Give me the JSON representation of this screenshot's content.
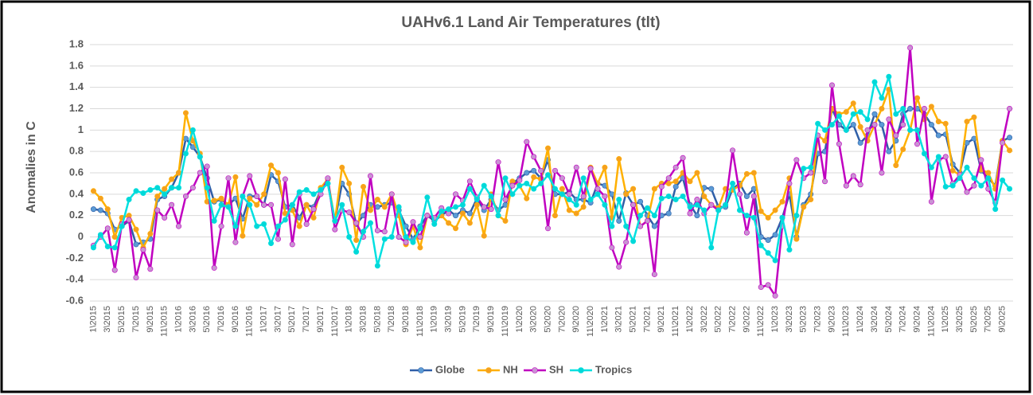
{
  "chart_data": {
    "type": "line",
    "title": "UAHv6.1 Land Air Temperatures (tlt)",
    "y_label": "Anomalies in C",
    "categories": [
      "1\\2015",
      null,
      "3\\2015",
      null,
      "5\\2015",
      null,
      "7\\2015",
      null,
      "9\\2015",
      null,
      "11\\2015",
      null,
      "1\\2016",
      null,
      "3\\2016",
      null,
      "5\\2016",
      null,
      "7\\2016",
      null,
      "9\\2016",
      null,
      "11\\2016",
      null,
      "1\\2017",
      null,
      "3\\2017",
      null,
      "5\\2017",
      null,
      "7\\2017",
      null,
      "9\\2017",
      null,
      "11\\2017",
      null,
      "1\\2018",
      null,
      "3\\2018",
      null,
      "5\\2018",
      null,
      "7\\2018",
      null,
      "9\\2018",
      null,
      "11\\2018",
      null,
      "1\\2019",
      null,
      "3\\2019",
      null,
      "5\\2019",
      null,
      "7\\2019",
      null,
      "9\\2019",
      null,
      "11\\2019",
      null,
      "1\\2020",
      null,
      "3\\2020",
      null,
      "5\\2020",
      null,
      "7\\2020",
      null,
      "9\\2020",
      null,
      "11\\2020",
      null,
      "1\\2021",
      null,
      "3\\2021",
      null,
      "5\\2021",
      null,
      "7\\2021",
      null,
      "9\\2021",
      null,
      "11\\2021",
      null,
      "1\\2022",
      null,
      "3\\2022",
      null,
      "5\\2022",
      null,
      "7\\2022",
      null,
      "9\\2022",
      null,
      "11\\2022",
      null,
      "1\\2023",
      null,
      "3\\2023",
      null,
      "5\\2023",
      null,
      "7\\2023",
      null,
      "9\\2023",
      null,
      "11\\2023",
      null,
      "1\\2024",
      null,
      "3\\2024",
      null,
      "5\\2024",
      null,
      "7\\2024",
      null,
      "9\\2024",
      null,
      "11\\2024",
      null,
      "1\\2025",
      null,
      "3\\2025",
      null,
      "5\\2025",
      null,
      "7\\2025",
      null,
      "9\\2025",
      null
    ],
    "series": [
      {
        "name": "Globe",
        "color": "#2f5fa8",
        "marker_color": "#5b9bd5",
        "values": [
          0.26,
          0.25,
          0.22,
          0.07,
          0.1,
          0.15,
          -0.07,
          -0.05,
          -0.02,
          0.35,
          0.38,
          0.46,
          0.6,
          0.92,
          0.84,
          0.75,
          0.55,
          0.33,
          0.35,
          0.3,
          0.36,
          0.17,
          0.38,
          0.38,
          0.3,
          0.58,
          0.52,
          0.28,
          0.3,
          0.18,
          0.3,
          0.28,
          0.44,
          0.5,
          0.15,
          0.5,
          0.4,
          0.12,
          0.2,
          0.3,
          0.28,
          0.3,
          0.32,
          0.25,
          0.1,
          -0.02,
          0.1,
          0.2,
          0.15,
          0.2,
          0.25,
          0.2,
          0.25,
          0.22,
          0.36,
          0.25,
          0.35,
          0.25,
          0.3,
          0.5,
          0.55,
          0.6,
          0.62,
          0.55,
          0.72,
          0.4,
          0.4,
          0.42,
          0.35,
          0.35,
          0.32,
          0.5,
          0.48,
          0.4,
          0.15,
          0.41,
          0.3,
          0.33,
          0.2,
          0.1,
          0.2,
          0.22,
          0.47,
          0.55,
          0.3,
          0.2,
          0.46,
          0.45,
          0.28,
          0.28,
          0.45,
          0.5,
          0.38,
          0.45,
          0.0,
          -0.03,
          0.02,
          0.18,
          0.4,
          0.0,
          0.3,
          0.4,
          0.78,
          0.8,
          1.2,
          1.05,
          1.0,
          1.05,
          0.88,
          0.95,
          1.15,
          1.05,
          0.8,
          0.9,
          1.15,
          1.2,
          1.2,
          1.15,
          1.05,
          0.95,
          0.96,
          0.68,
          0.6,
          0.88,
          0.92,
          0.62,
          0.55,
          0.48,
          0.9,
          0.93
        ]
      },
      {
        "name": "NH",
        "color": "#ffb000",
        "marker_color": "#f5a020",
        "values": [
          0.43,
          0.36,
          0.26,
          0.0,
          0.18,
          0.2,
          0.07,
          -0.1,
          0.03,
          0.38,
          0.45,
          0.54,
          0.6,
          1.16,
          0.9,
          0.78,
          0.33,
          0.34,
          0.36,
          0.3,
          0.56,
          0.01,
          0.36,
          0.3,
          0.4,
          0.67,
          0.6,
          0.22,
          0.25,
          0.1,
          0.3,
          0.18,
          0.46,
          0.54,
          0.15,
          0.65,
          0.5,
          -0.03,
          0.47,
          0.25,
          0.35,
          0.28,
          0.4,
          0.2,
          -0.07,
          0.1,
          -0.1,
          0.2,
          0.18,
          0.2,
          0.13,
          0.08,
          0.22,
          0.13,
          0.3,
          0.01,
          0.4,
          0.2,
          0.15,
          0.52,
          0.48,
          0.36,
          0.56,
          0.54,
          0.83,
          0.2,
          0.45,
          0.25,
          0.22,
          0.28,
          0.65,
          0.5,
          0.65,
          0.18,
          0.73,
          0.4,
          0.45,
          0.1,
          0.15,
          0.45,
          0.5,
          0.5,
          0.52,
          0.6,
          0.52,
          0.6,
          0.38,
          0.3,
          0.27,
          0.45,
          0.44,
          0.48,
          0.59,
          0.6,
          0.24,
          0.18,
          0.25,
          0.33,
          0.55,
          -0.02,
          0.28,
          0.35,
          0.95,
          0.9,
          1.2,
          1.15,
          1.17,
          1.25,
          1.03,
          0.9,
          1.05,
          1.2,
          1.38,
          0.67,
          0.82,
          1.0,
          1.3,
          1.1,
          1.22,
          1.08,
          1.06,
          0.62,
          0.58,
          1.08,
          1.12,
          0.63,
          0.6,
          0.45,
          0.9,
          0.81
        ]
      },
      {
        "name": "SH",
        "color": "#c000c0",
        "marker_color": "#c993d3",
        "values": [
          -0.08,
          0.0,
          0.08,
          -0.31,
          0.12,
          0.16,
          -0.38,
          -0.12,
          -0.3,
          0.25,
          0.18,
          0.3,
          0.1,
          0.38,
          0.46,
          0.6,
          0.66,
          -0.29,
          0.1,
          0.55,
          -0.05,
          0.38,
          0.57,
          0.38,
          0.3,
          0.3,
          -0.02,
          0.54,
          -0.07,
          0.4,
          0.12,
          0.26,
          0.4,
          0.55,
          0.07,
          0.25,
          0.23,
          0.13,
          0.0,
          0.57,
          0.06,
          0.05,
          0.4,
          0.0,
          -0.05,
          0.14,
          0.0,
          0.2,
          0.18,
          0.27,
          0.22,
          0.4,
          0.34,
          0.52,
          0.37,
          0.28,
          0.26,
          0.7,
          0.35,
          0.48,
          0.53,
          0.89,
          0.75,
          0.62,
          0.08,
          0.62,
          0.55,
          0.4,
          0.65,
          0.38,
          0.64,
          0.45,
          0.38,
          -0.1,
          -0.28,
          -0.05,
          0.3,
          0.1,
          0.15,
          -0.35,
          0.47,
          0.55,
          0.65,
          0.74,
          0.22,
          0.35,
          0.22,
          0.3,
          0.25,
          0.3,
          0.81,
          0.4,
          0.04,
          0.38,
          -0.47,
          -0.45,
          -0.55,
          0.1,
          0.5,
          0.72,
          0.55,
          0.6,
          0.95,
          0.52,
          1.42,
          0.87,
          0.48,
          0.57,
          0.49,
          1.0,
          1.05,
          0.6,
          1.1,
          0.95,
          1.05,
          1.77,
          0.87,
          1.2,
          0.33,
          0.72,
          0.75,
          0.5,
          0.58,
          0.42,
          0.48,
          0.72,
          0.45,
          0.32,
          0.88,
          1.2
        ]
      },
      {
        "name": "Tropics",
        "color": "#00e0e0",
        "marker_color": "#00d8d8",
        "values": [
          -0.1,
          0.02,
          -0.09,
          -0.1,
          0.1,
          0.35,
          0.43,
          0.41,
          0.44,
          0.46,
          0.4,
          0.46,
          0.46,
          0.78,
          1.0,
          0.75,
          0.46,
          0.15,
          0.3,
          0.28,
          0.1,
          0.38,
          0.3,
          0.1,
          0.12,
          -0.06,
          0.1,
          0.16,
          0.3,
          0.42,
          0.44,
          0.4,
          0.44,
          0.5,
          0.15,
          0.3,
          0.0,
          -0.14,
          0.05,
          0.13,
          -0.27,
          -0.02,
          0.0,
          0.28,
          0.0,
          -0.05,
          0.08,
          0.37,
          0.12,
          0.24,
          0.26,
          0.28,
          0.3,
          0.45,
          0.35,
          0.48,
          0.38,
          0.2,
          0.55,
          0.4,
          0.48,
          0.5,
          0.45,
          0.5,
          0.58,
          0.45,
          0.4,
          0.35,
          0.3,
          0.55,
          0.35,
          0.4,
          0.3,
          0.1,
          0.35,
          0.1,
          -0.04,
          0.2,
          0.27,
          0.2,
          0.36,
          0.38,
          0.35,
          0.38,
          0.28,
          0.3,
          0.25,
          -0.1,
          0.25,
          0.3,
          0.5,
          0.25,
          0.2,
          0.18,
          -0.08,
          -0.15,
          -0.22,
          0.18,
          -0.12,
          0.2,
          0.64,
          0.65,
          1.06,
          1.0,
          1.05,
          1.13,
          1.0,
          1.15,
          1.17,
          1.1,
          1.45,
          1.3,
          1.5,
          1.15,
          1.2,
          1.0,
          1.0,
          0.78,
          0.65,
          0.75,
          0.47,
          0.48,
          0.55,
          0.65,
          0.55,
          0.48,
          0.55,
          0.26,
          0.53,
          0.45
        ]
      }
    ],
    "ylim": [
      -0.6,
      1.8
    ],
    "yticks": [
      -0.6,
      -0.4,
      -0.2,
      0,
      0.2,
      0.4,
      0.6,
      0.8,
      1,
      1.2,
      1.4,
      1.6,
      1.8
    ],
    "grid": true,
    "legend": "bottom"
  }
}
